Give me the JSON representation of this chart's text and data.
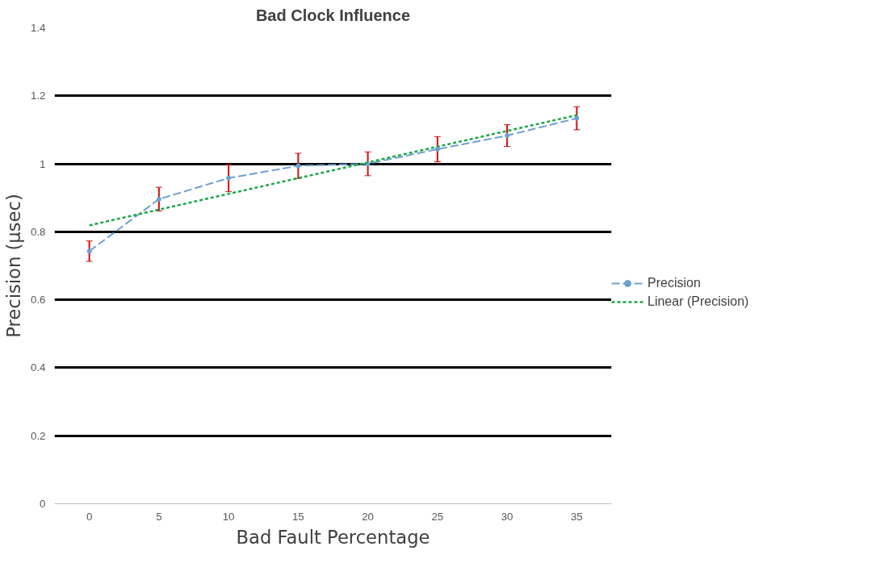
{
  "chart_data": {
    "type": "line",
    "title": "Bad Clock Influence",
    "xlabel": "Bad Fault Percentage",
    "ylabel": "Precision (µsec)",
    "x": [
      0,
      5,
      10,
      15,
      20,
      25,
      30,
      35
    ],
    "series": [
      {
        "name": "Precision",
        "color": "#6fa0d0",
        "values": [
          0.743,
          0.896,
          0.958,
          0.994,
          1.0,
          1.043,
          1.083,
          1.134
        ],
        "errors": [
          0.03,
          0.035,
          0.04,
          0.037,
          0.035,
          0.037,
          0.032,
          0.034
        ],
        "marker": "circle",
        "line_style": "dashed"
      },
      {
        "name": "Linear (Precision)",
        "color": "#1ca84a",
        "type": "line",
        "x": [
          0,
          35
        ],
        "values": [
          0.819,
          1.143
        ],
        "marker": "none",
        "line_style": "dotted"
      }
    ],
    "xlim": [
      -2.5,
      37.5
    ],
    "xticks": [
      0,
      5,
      10,
      15,
      20,
      25,
      30,
      35
    ],
    "ylim": [
      0,
      1.4
    ],
    "yticks": [
      0,
      0.2,
      0.4,
      0.6,
      0.8,
      1,
      1.2,
      1.4
    ],
    "grid": "y",
    "legend": "right"
  }
}
